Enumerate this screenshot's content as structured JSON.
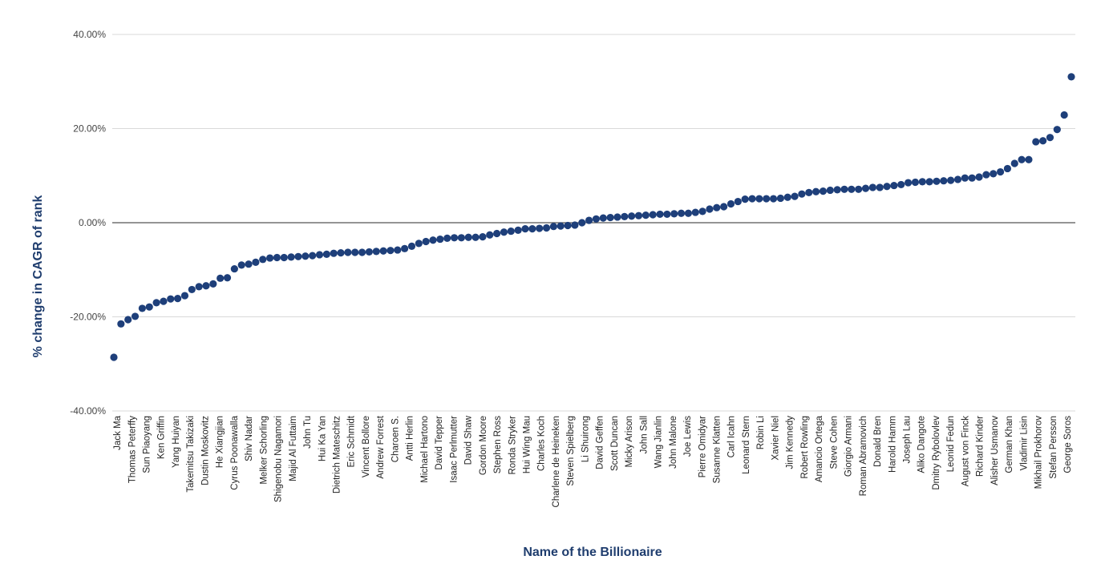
{
  "chart_data": {
    "type": "scatter",
    "title": "",
    "xlabel": "Name of the Billionaire",
    "ylabel": "% change in CAGR of rank",
    "ylim": [
      -40,
      40
    ],
    "y_ticks": [
      "-40.00%",
      "-20.00%",
      "0.00%",
      "20.00%",
      "40.00%"
    ],
    "grid": true,
    "legend": "none",
    "colors": {
      "marker": "#1e3f7a",
      "axis_title": "#1f3d6e",
      "grid": "#d9d9d9",
      "zero_line": "#555555"
    },
    "category_labels": [
      "Jack Ma",
      "Thomas Peterffy",
      "Sun Piaoyang",
      "Ken Griffin",
      "Yang Huiyan",
      "Takemitsu Takizaki",
      "Dustin Moskovitz",
      "He Xiangjian",
      "Cyrus Poonawalla",
      "Shiv Nadar",
      "Melker Schorling",
      "Shigenobu Nagamori",
      "Majid Al Futtaim",
      "John Tu",
      "Hui Ka Yan",
      "Dietrich Mateschitz",
      "Eric Schmidt",
      "Vincent Bollore",
      "Andrew Forrest",
      "Charoen S.",
      "Antti Herlin",
      "Michael Hartono",
      "David Tepper",
      "Isaac Perlmutter",
      "David Shaw",
      "Gordon Moore",
      "Stephen Ross",
      "Ronda Stryker",
      "Hui Wing Mau",
      "Charles Koch",
      "Charlene de Heineken",
      "Steven Spielberg",
      "Li Shuirong",
      "David Geffen",
      "Scott Duncan",
      "Micky Arison",
      "John Sall",
      "Wang Jianlin",
      "John Malone",
      "Joe Lewis",
      "Pierre Omidyar",
      "Susanne Klatten",
      "Carl Icahn",
      "Leonard Stern",
      "Robin Li",
      "Xavier Niel",
      "Jim Kennedy",
      "Robert Rowling",
      "Amancio Ortega",
      "Steve Cohen",
      "Giorgio Armani",
      "Roman Abramovich",
      "Donald Bren",
      "Harold Hamm",
      "Joseph Lau",
      "Aliko Dangote",
      "Dmitry Rybolovlev",
      "Leonid Fedun",
      "August von Finck",
      "Richard Kinder",
      "Alisher Usmanov",
      "German Khan",
      "Vladimir Lisin",
      "Mikhail Prokhorov",
      "Stefan Persson",
      "George Soros"
    ],
    "values": [
      -28.6,
      -21.5,
      -20.6,
      -19.9,
      -18.2,
      -17.9,
      -17.0,
      -16.7,
      -16.2,
      -16.1,
      -15.5,
      -14.2,
      -13.6,
      -13.4,
      -13.0,
      -11.8,
      -11.7,
      -9.8,
      -9.0,
      -8.8,
      -8.4,
      -7.8,
      -7.5,
      -7.4,
      -7.4,
      -7.3,
      -7.2,
      -7.1,
      -7.0,
      -6.8,
      -6.7,
      -6.5,
      -6.4,
      -6.3,
      -6.3,
      -6.3,
      -6.2,
      -6.1,
      -6.0,
      -5.9,
      -5.8,
      -5.5,
      -5.0,
      -4.4,
      -4.0,
      -3.7,
      -3.5,
      -3.3,
      -3.2,
      -3.2,
      -3.1,
      -3.1,
      -3.0,
      -2.6,
      -2.3,
      -2.0,
      -1.8,
      -1.6,
      -1.3,
      -1.3,
      -1.2,
      -1.1,
      -0.8,
      -0.7,
      -0.6,
      -0.5,
      0.0,
      0.5,
      0.8,
      1.0,
      1.1,
      1.2,
      1.3,
      1.4,
      1.5,
      1.6,
      1.7,
      1.8,
      1.8,
      1.9,
      2.0,
      2.0,
      2.2,
      2.4,
      2.9,
      3.2,
      3.4,
      4.0,
      4.5,
      5.0,
      5.1,
      5.1,
      5.1,
      5.1,
      5.2,
      5.4,
      5.6,
      6.1,
      6.4,
      6.6,
      6.7,
      6.9,
      7.0,
      7.1,
      7.1,
      7.1,
      7.3,
      7.5,
      7.5,
      7.7,
      7.9,
      8.1,
      8.5,
      8.6,
      8.7,
      8.7,
      8.8,
      8.9,
      9.0,
      9.2,
      9.5,
      9.5,
      9.7,
      10.2,
      10.4,
      10.8,
      11.5,
      12.6,
      13.4,
      13.4,
      17.2,
      17.4,
      18.1,
      19.8,
      22.9,
      31.0
    ]
  }
}
